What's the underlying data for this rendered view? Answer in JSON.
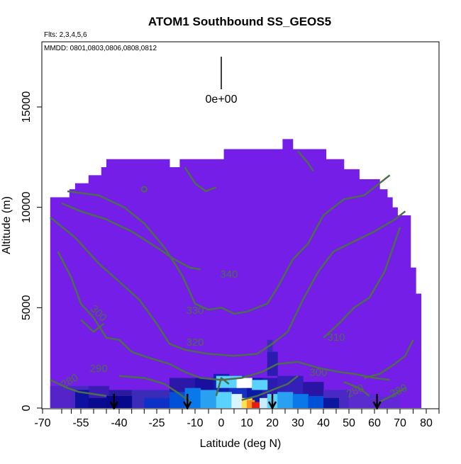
{
  "chart_data": {
    "type": "heatmap",
    "title": "ATOM1 Southbound SS_GEOS5",
    "flights_note": "Flts: 2,3,4,5,6",
    "dates_note": "MMDD: 0801,0803,0806,0808,0812",
    "xlabel": "Latitude (deg N)",
    "ylabel": "Altitude (m)",
    "xlim": [
      -70,
      80
    ],
    "ylim": [
      0,
      17700
    ],
    "x_tick_labels": [
      "-70",
      "-55",
      "-40",
      "-25",
      "-10",
      "0",
      "10",
      "20",
      "30",
      "40",
      "50",
      "60",
      "70",
      "80"
    ],
    "y_tick_labels": [
      "0",
      "5000",
      "10000",
      "15000"
    ],
    "legend_scale_label": "0e+00",
    "contour_labels": [
      "340",
      "330",
      "320",
      "310",
      "300",
      "290",
      "280",
      "300",
      "280",
      "280"
    ],
    "colors": {
      "background_field": "#741ee8",
      "contour": "#4c6e4c",
      "low": "#3c1cb4",
      "mid": "#0050d8",
      "high_cyan": "#5ad2ff",
      "peak_yellow": "#ffe050",
      "peak_red": "#e02010"
    },
    "flight_marker_latitudes": [
      -42,
      -13,
      20,
      61
    ]
  }
}
